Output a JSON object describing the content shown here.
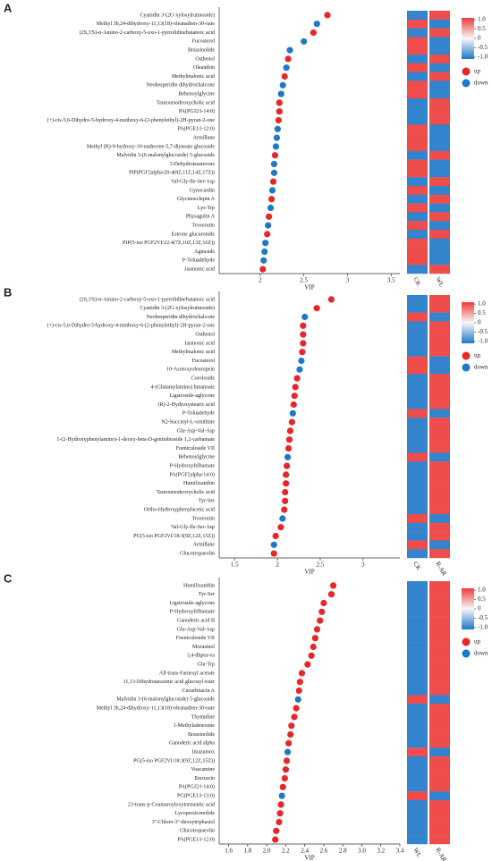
{
  "chart_data": [
    {
      "type": "dot",
      "label": "A",
      "xlabel": "VIP",
      "xlim": [
        1.53,
        3.6
      ],
      "xticks": [
        2,
        2.5,
        3,
        3.5
      ],
      "categories": [
        "Cyanidin 3-(2G-xylosylrutinoside)",
        "Methyl 3b,24-dihydroxy-11,13(18)-oleanadien-30-oate",
        "(2S,3'S)-α-Amino-2-carboxy-5-oxo-1-pyrrolidinebutanoic acid",
        "Fucosterol",
        "Brassinolide",
        "Osthenol",
        "Oleandrin",
        "Methylmalonic acid",
        "Neohesperidin dihydrochalcone",
        "Behenoylglycine",
        "Tauroursodeoxycholic acid",
        "PA(PGJ2/i-14:0)",
        "(+)-cis-5,6-Dihydro-5-hydroxy-4-methoxy-6-(2-phenylethyl)-2H-pyran-2-one",
        "PA(PGE1/i-12:0)",
        "Armillane",
        "Methyl (R)-9-hydroxy-10-undecene-5,7-diynoate glucoside",
        "Malvidin 3-(6-malonylglucoside) 5-glucoside",
        "3-Dehydroteasterone",
        "PIP(PGF2alpha/20:4(8Z,11Z,14Z,17Z))",
        "Val-Gly-Ile-Ser-Asp",
        "Gynocardin",
        "Glycinoeclepin A",
        "Lys-Trp",
        "Physagulin A",
        "Troxerutin",
        "Estrone glucuronide",
        "PIP(5-iso PGF2VI/22:4(7Z,10Z,13Z,16Z))",
        "Agnuside",
        "P-Toluadehyde",
        "Jasmonic acid"
      ],
      "values": [
        2.77,
        2.65,
        2.61,
        2.5,
        2.34,
        2.32,
        2.3,
        2.28,
        2.26,
        2.24,
        2.22,
        2.22,
        2.21,
        2.2,
        2.19,
        2.18,
        2.17,
        2.16,
        2.16,
        2.15,
        2.14,
        2.13,
        2.12,
        2.1,
        2.09,
        2.08,
        2.06,
        2.05,
        2.04,
        2.03
      ],
      "point_colors": [
        "#e8262a",
        "#1f78c8",
        "#e8262a",
        "#1f78c8",
        "#1f78c8",
        "#e8262a",
        "#1f78c8",
        "#e8262a",
        "#1f78c8",
        "#1f78c8",
        "#e8262a",
        "#e8262a",
        "#e8262a",
        "#1f78c8",
        "#1f78c8",
        "#1f78c8",
        "#e8262a",
        "#1f78c8",
        "#1f78c8",
        "#e8262a",
        "#1f78c8",
        "#e8262a",
        "#1f78c8",
        "#e8262a",
        "#1f78c8",
        "#e8262a",
        "#1f78c8",
        "#1f78c8",
        "#1f78c8",
        "#e8262a"
      ],
      "heatmap": {
        "columns": [
          "CK",
          "WL"
        ],
        "values": [
          [
            -1,
            1
          ],
          [
            1,
            -1
          ],
          [
            -1,
            1
          ],
          [
            1,
            -1
          ],
          [
            1,
            -1
          ],
          [
            -1,
            1
          ],
          [
            1,
            -1
          ],
          [
            -1,
            1
          ],
          [
            1,
            -1
          ],
          [
            1,
            -1
          ],
          [
            -1,
            1
          ],
          [
            -1,
            1
          ],
          [
            -1,
            1
          ],
          [
            1,
            -1
          ],
          [
            1,
            -1
          ],
          [
            1,
            -1
          ],
          [
            -1,
            1
          ],
          [
            1,
            -1
          ],
          [
            1,
            -1
          ],
          [
            -1,
            1
          ],
          [
            1,
            -1
          ],
          [
            -1,
            1
          ],
          [
            1,
            -1
          ],
          [
            -1,
            1
          ],
          [
            1,
            -1
          ],
          [
            -1,
            1
          ],
          [
            1,
            -1
          ],
          [
            1,
            -1
          ],
          [
            1,
            -1
          ],
          [
            -1,
            1
          ]
        ]
      },
      "colorbar": {
        "lim": [
          -1.1,
          1.1
        ],
        "colormap": [
          "#1f78c8",
          "#f7f7f7",
          "#ee3b3b"
        ],
        "ticks": [
          {
            "value": 1,
            "label": "1.0"
          },
          0.5,
          0,
          -0.5,
          {
            "value": -1,
            "label": "-1.0"
          }
        ]
      },
      "legend": [
        {
          "name": "up",
          "color": "#e8262a"
        },
        {
          "name": "down",
          "color": "#1f78c8"
        }
      ]
    },
    {
      "type": "dot",
      "label": "B",
      "xlabel": "VIP",
      "xlim": [
        1.32,
        3.43
      ],
      "xticks": [
        1.5,
        2,
        2.5,
        3
      ],
      "categories": [
        "(2S,3'S)-α-Amino-2-carboxy-5-oxo-1-pyrrolidinebutanoic acid",
        "Cyanidin 3-(2G-xylosylrutinoside)",
        "Neohesperidin dihydrochalcone",
        "(+)-cis-5,6-Dihydro-5-hydroxy-4-methoxy-6-(2-phenylethyl)-2H-pyran-2-one",
        "Osthenol",
        "Jasmonic acid",
        "Methylmalonic acid",
        "Fucosterol",
        "10-Acetoxyoleuropein",
        "Coroloside",
        "4-(Glutamylamino) butanoate",
        "Ligstroside-aglycone",
        "(R)-2-Hydroxystearic acid",
        "P-Toluadehyde",
        "N2-Succinyl-L-ornithine",
        "Glu-Asp-Val-Asp",
        "1-(2-Hydroxyphenylamino)-1-deoxy-beta-D-gentiobioside 1,2-carbamate",
        "Foeniculoside VII",
        "Behenoylglycine",
        "P-Hydroxyfelbamate",
        "PA(PGF2alpha/14:0)",
        "Humilixanthin",
        "Tauroursodeoxycholic acid",
        "Tyr-Ser",
        "Ortho-Hydroxyphenylacetic acid",
        "Troxerutin",
        "Val-Gly-Ile-Ser-Asp",
        "PG(5-iso PGF2VI/18:3(9Z,12Z,15Z))",
        "Armillane",
        "Glucotropaeolin"
      ],
      "values": [
        2.63,
        2.46,
        2.32,
        2.3,
        2.3,
        2.3,
        2.29,
        2.28,
        2.26,
        2.23,
        2.21,
        2.2,
        2.19,
        2.18,
        2.17,
        2.15,
        2.14,
        2.13,
        2.12,
        2.11,
        2.1,
        2.1,
        2.09,
        2.09,
        2.08,
        2.06,
        2.04,
        1.98,
        1.96,
        1.96
      ],
      "point_colors": [
        "#e8262a",
        "#e8262a",
        "#1f78c8",
        "#e8262a",
        "#e8262a",
        "#e8262a",
        "#e8262a",
        "#1f78c8",
        "#1f78c8",
        "#e8262a",
        "#e8262a",
        "#e8262a",
        "#e8262a",
        "#1f78c8",
        "#e8262a",
        "#e8262a",
        "#e8262a",
        "#e8262a",
        "#1f78c8",
        "#e8262a",
        "#e8262a",
        "#e8262a",
        "#e8262a",
        "#e8262a",
        "#e8262a",
        "#1f78c8",
        "#e8262a",
        "#e8262a",
        "#1f78c8",
        "#e8262a"
      ],
      "heatmap": {
        "columns": [
          "CK",
          "R-AR"
        ],
        "values": [
          [
            -1,
            1
          ],
          [
            -1,
            1
          ],
          [
            1,
            -1
          ],
          [
            -1,
            1
          ],
          [
            -1,
            1
          ],
          [
            -1,
            1
          ],
          [
            -1,
            1
          ],
          [
            1,
            -1
          ],
          [
            1,
            -1
          ],
          [
            -1,
            1
          ],
          [
            -1,
            1
          ],
          [
            -1,
            1
          ],
          [
            -1,
            1
          ],
          [
            1,
            -1
          ],
          [
            -1,
            1
          ],
          [
            -1,
            1
          ],
          [
            -1,
            1
          ],
          [
            -1,
            1
          ],
          [
            1,
            -1
          ],
          [
            -1,
            1
          ],
          [
            -1,
            1
          ],
          [
            -1,
            1
          ],
          [
            -1,
            1
          ],
          [
            -1,
            1
          ],
          [
            -1,
            1
          ],
          [
            1,
            -1
          ],
          [
            -1,
            1
          ],
          [
            -1,
            1
          ],
          [
            1,
            -1
          ],
          [
            -1,
            1
          ]
        ]
      },
      "colorbar": {
        "lim": [
          -1.1,
          1.1
        ],
        "colormap": [
          "#1f78c8",
          "#f7f7f7",
          "#ee3b3b"
        ],
        "ticks": [
          {
            "value": 1,
            "label": "1.0"
          },
          0.5,
          0,
          -0.5,
          {
            "value": -1,
            "label": "-1.0"
          }
        ]
      },
      "legend": [
        {
          "name": "up",
          "color": "#e8262a"
        },
        {
          "name": "down",
          "color": "#1f78c8"
        }
      ]
    },
    {
      "type": "dot",
      "label": "C",
      "xlabel": "VIP",
      "xlim": [
        1.5,
        3.4
      ],
      "xticks": [
        1.6,
        1.8,
        {
          "value": 2,
          "label": "2.0"
        },
        2.2,
        2.4,
        2.6,
        2.8,
        {
          "value": 3,
          "label": "3.0"
        },
        3.2,
        3.4
      ],
      "categories": [
        "Humilixanthin",
        "Tyr-Ser",
        "Ligstroside-aglycone",
        "P-Hydroxyfelbamate",
        "Ganoderic acid B",
        "Glu-Asp-Val-Asp",
        "Foeniculoside VII",
        "Morusinol",
        "3,4-dhpea-ea",
        "Glu-Trp",
        "All-trans-Farnesyl acetate",
        "11,13-Dihydrotaraxinic acid glucosyl ester",
        "Cucurbitacin A",
        "Malvidin 3-(6-malonylglucoside) 5-glucoside",
        "Methyl 3b,24-dihydroxy-11,13(18)-oleanadien-30-oate",
        "Thymidine",
        "1-Methyladenosine",
        "Brassinolide",
        "Ganoderic acid alpha",
        "Imazamox",
        "PG(5-iso PGF2VI/18:3(9Z,12Z,15Z))",
        "Voacamine",
        "Enoxacin",
        "PA(PGJ2/i-14:0)",
        "PG(PGE1/i-13:0)",
        "23-trans-p-Coumaroyloxytormentic acid",
        "Lycopersiconolide",
        "3''-Chloro-3''-deoxytriphasiol",
        "Glucotropaeolin",
        "PA(PGE1/i-12:0)"
      ],
      "values": [
        2.7,
        2.68,
        2.6,
        2.58,
        2.56,
        2.53,
        2.51,
        2.49,
        2.47,
        2.43,
        2.37,
        2.35,
        2.34,
        2.33,
        2.31,
        2.29,
        2.26,
        2.25,
        2.23,
        2.22,
        2.21,
        2.2,
        2.19,
        2.17,
        2.16,
        2.15,
        2.14,
        2.13,
        2.1,
        2.09
      ],
      "point_colors": [
        "#e8262a",
        "#e8262a",
        "#e8262a",
        "#e8262a",
        "#e8262a",
        "#e8262a",
        "#e8262a",
        "#e8262a",
        "#e8262a",
        "#e8262a",
        "#e8262a",
        "#e8262a",
        "#e8262a",
        "#1f78c8",
        "#e8262a",
        "#e8262a",
        "#e8262a",
        "#e8262a",
        "#e8262a",
        "#1f78c8",
        "#e8262a",
        "#e8262a",
        "#e8262a",
        "#e8262a",
        "#1f78c8",
        "#e8262a",
        "#e8262a",
        "#e8262a",
        "#e8262a",
        "#e8262a"
      ],
      "heatmap": {
        "columns": [
          "WL",
          "R-AR"
        ],
        "values": [
          [
            -1,
            1
          ],
          [
            -1,
            1
          ],
          [
            -1,
            1
          ],
          [
            -1,
            1
          ],
          [
            -1,
            1
          ],
          [
            -1,
            1
          ],
          [
            -1,
            1
          ],
          [
            -1,
            1
          ],
          [
            -1,
            1
          ],
          [
            -1,
            1
          ],
          [
            -1,
            1
          ],
          [
            -1,
            1
          ],
          [
            -1,
            1
          ],
          [
            1,
            -1
          ],
          [
            -1,
            1
          ],
          [
            -1,
            1
          ],
          [
            -1,
            1
          ],
          [
            -1,
            1
          ],
          [
            -1,
            1
          ],
          [
            1,
            -1
          ],
          [
            -1,
            1
          ],
          [
            -1,
            1
          ],
          [
            -1,
            1
          ],
          [
            -1,
            1
          ],
          [
            1,
            -1
          ],
          [
            -1,
            1
          ],
          [
            -1,
            1
          ],
          [
            -1,
            1
          ],
          [
            -1,
            1
          ],
          [
            -1,
            1
          ]
        ]
      },
      "colorbar": {
        "lim": [
          -1.1,
          1.1
        ],
        "colormap": [
          "#1f78c8",
          "#f7f7f7",
          "#ee3b3b"
        ],
        "ticks": [
          {
            "value": 1,
            "label": "1.0"
          },
          0.5,
          0,
          -0.5,
          {
            "value": -1,
            "label": "-1.0"
          }
        ]
      },
      "legend": [
        {
          "name": "up",
          "color": "#e8262a"
        },
        {
          "name": "down",
          "color": "#1f78c8"
        }
      ]
    }
  ]
}
